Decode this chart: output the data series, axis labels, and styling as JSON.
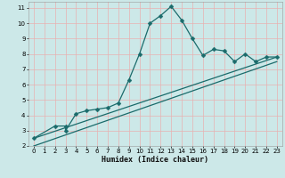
{
  "xlabel": "Humidex (Indice chaleur)",
  "background_color": "#cce8e8",
  "grid_color": "#e8b0b0",
  "line_color": "#1a6b6b",
  "xlim": [
    -0.5,
    23.5
  ],
  "ylim": [
    2,
    11.4
  ],
  "xticks": [
    0,
    1,
    2,
    3,
    4,
    5,
    6,
    7,
    8,
    9,
    10,
    11,
    12,
    13,
    14,
    15,
    16,
    17,
    18,
    19,
    20,
    21,
    22,
    23
  ],
  "yticks": [
    2,
    3,
    4,
    5,
    6,
    7,
    8,
    9,
    10,
    11
  ],
  "line1_x": [
    0,
    2,
    3,
    3,
    4,
    5,
    6,
    7,
    8,
    9,
    10,
    11,
    12,
    13,
    14,
    15,
    16,
    17,
    18,
    19,
    20,
    21,
    22,
    23
  ],
  "line1_y": [
    2.5,
    3.3,
    3.3,
    3.0,
    4.1,
    4.3,
    4.4,
    4.5,
    4.8,
    6.3,
    8.0,
    10.0,
    10.5,
    11.1,
    10.2,
    9.0,
    7.9,
    8.3,
    8.2,
    7.5,
    8.0,
    7.5,
    7.8,
    7.8
  ],
  "line2_x": [
    0,
    23
  ],
  "line2_y": [
    2.5,
    7.8
  ],
  "line3_x": [
    0,
    23
  ],
  "line3_y": [
    2.0,
    7.5
  ],
  "markersize": 2.5,
  "linewidth": 0.9,
  "tick_fontsize": 5.0,
  "xlabel_fontsize": 6.0
}
